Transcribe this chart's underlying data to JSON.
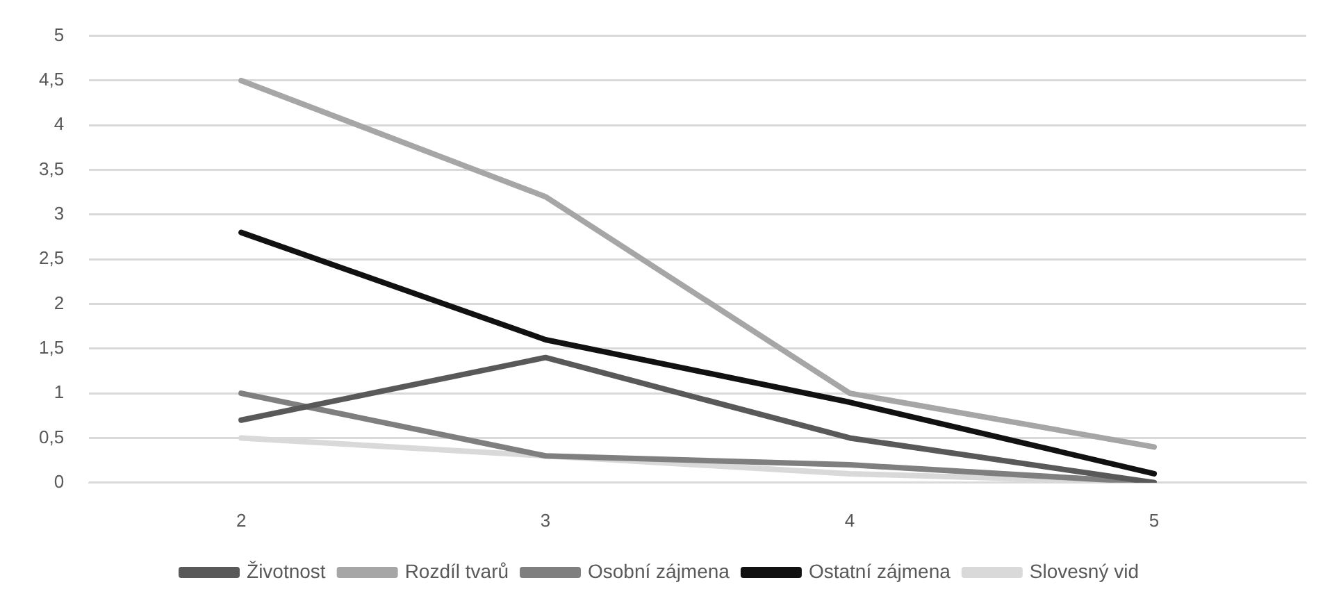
{
  "chart_data": {
    "type": "line",
    "categories": [
      "2",
      "3",
      "4",
      "5"
    ],
    "series": [
      {
        "name": "Životnost",
        "color": "#595959",
        "values": [
          0.7,
          1.4,
          0.5,
          0
        ]
      },
      {
        "name": "Rozdíl tvarů",
        "color": "#a6a6a6",
        "values": [
          4.5,
          3.2,
          1.0,
          0.4
        ]
      },
      {
        "name": "Osobní zájmena",
        "color": "#7f7f7f",
        "values": [
          1.0,
          0.3,
          0.2,
          0
        ]
      },
      {
        "name": "Ostatní zájmena",
        "color": "#111111",
        "values": [
          2.8,
          1.6,
          0.9,
          0.1
        ]
      },
      {
        "name": "Slovesný vid",
        "color": "#d9d9d9",
        "values": [
          0.5,
          0.3,
          0.1,
          0
        ]
      }
    ],
    "ylim": [
      0,
      5
    ],
    "yticks": [
      0,
      {
        "value": 0.5,
        "label": "0,5"
      },
      1,
      {
        "value": 1.5,
        "label": "1,5"
      },
      2,
      {
        "value": 2.5,
        "label": "2,5"
      },
      3,
      {
        "value": 3.5,
        "label": "3,5"
      },
      4,
      {
        "value": 4.5,
        "label": "4,5"
      },
      5
    ],
    "grid": "y",
    "legend": "bottom",
    "marker": "none",
    "line_style": "solid"
  }
}
